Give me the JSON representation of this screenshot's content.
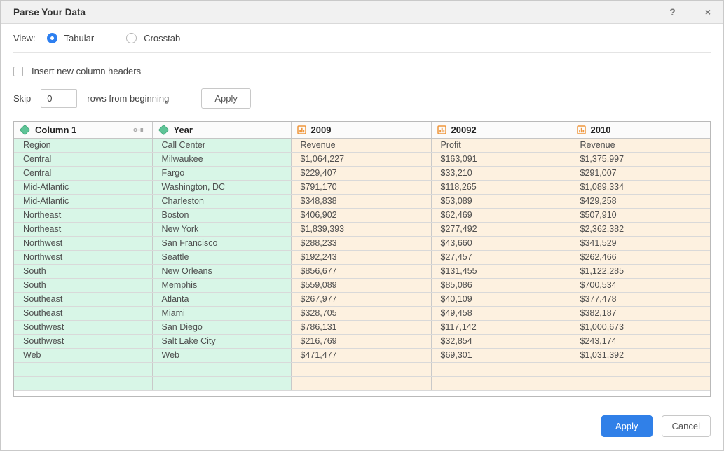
{
  "dialog": {
    "title": "Parse Your Data",
    "help_icon": "?",
    "close_icon": "×"
  },
  "view": {
    "label": "View:",
    "options": [
      {
        "label": "Tabular",
        "selected": true
      },
      {
        "label": "Crosstab",
        "selected": false
      }
    ]
  },
  "insert_headers": {
    "label": "Insert new column headers",
    "checked": false
  },
  "skip": {
    "label_before": "Skip",
    "value": "0",
    "label_after": "rows from beginning",
    "apply_label": "Apply"
  },
  "table": {
    "columns": [
      {
        "label": "Column 1",
        "type": "dimension",
        "icon": "green-diamond"
      },
      {
        "label": "Year",
        "type": "dimension",
        "icon": "green-diamond"
      },
      {
        "label": "2009",
        "type": "measure",
        "icon": "orange-bars"
      },
      {
        "label": "20092",
        "type": "measure",
        "icon": "orange-bars"
      },
      {
        "label": "2010",
        "type": "measure",
        "icon": "orange-bars"
      }
    ],
    "rows": [
      [
        "Region",
        "Call Center",
        "Revenue",
        "Profit",
        "Revenue"
      ],
      [
        "Central",
        "Milwaukee",
        "$1,064,227",
        "$163,091",
        "$1,375,997"
      ],
      [
        "Central",
        "Fargo",
        "$229,407",
        "$33,210",
        "$291,007"
      ],
      [
        "Mid-Atlantic",
        "Washington, DC",
        "$791,170",
        "$118,265",
        "$1,089,334"
      ],
      [
        "Mid-Atlantic",
        "Charleston",
        "$348,838",
        "$53,089",
        "$429,258"
      ],
      [
        "Northeast",
        "Boston",
        "$406,902",
        "$62,469",
        "$507,910"
      ],
      [
        "Northeast",
        "New York",
        "$1,839,393",
        "$277,492",
        "$2,362,382"
      ],
      [
        "Northwest",
        "San Francisco",
        "$288,233",
        "$43,660",
        "$341,529"
      ],
      [
        "Northwest",
        "Seattle",
        "$192,243",
        "$27,457",
        "$262,466"
      ],
      [
        "South",
        "New Orleans",
        "$856,677",
        "$131,455",
        "$1,122,285"
      ],
      [
        "South",
        "Memphis",
        "$559,089",
        "$85,086",
        "$700,534"
      ],
      [
        "Southeast",
        "Atlanta",
        "$267,977",
        "$40,109",
        "$377,478"
      ],
      [
        "Southeast",
        "Miami",
        "$328,705",
        "$49,458",
        "$382,187"
      ],
      [
        "Southwest",
        "San Diego",
        "$786,131",
        "$117,142",
        "$1,000,673"
      ],
      [
        "Southwest",
        "Salt Lake City",
        "$216,769",
        "$32,854",
        "$243,174"
      ],
      [
        "Web",
        "Web",
        "$471,477",
        "$69,301",
        "$1,031,392"
      ],
      [
        "",
        "",
        "",
        "",
        ""
      ],
      [
        "",
        "",
        "",
        "",
        ""
      ]
    ]
  },
  "footer": {
    "apply_label": "Apply",
    "cancel_label": "Cancel"
  },
  "colors": {
    "accent_blue": "#3080e8",
    "dimension_cell": "#d8f6e7",
    "measure_cell": "#fdf1e0",
    "dimension_icon": "#5ec497",
    "measure_icon": "#f0973c",
    "titlebar_bg": "#f1f1f1"
  }
}
